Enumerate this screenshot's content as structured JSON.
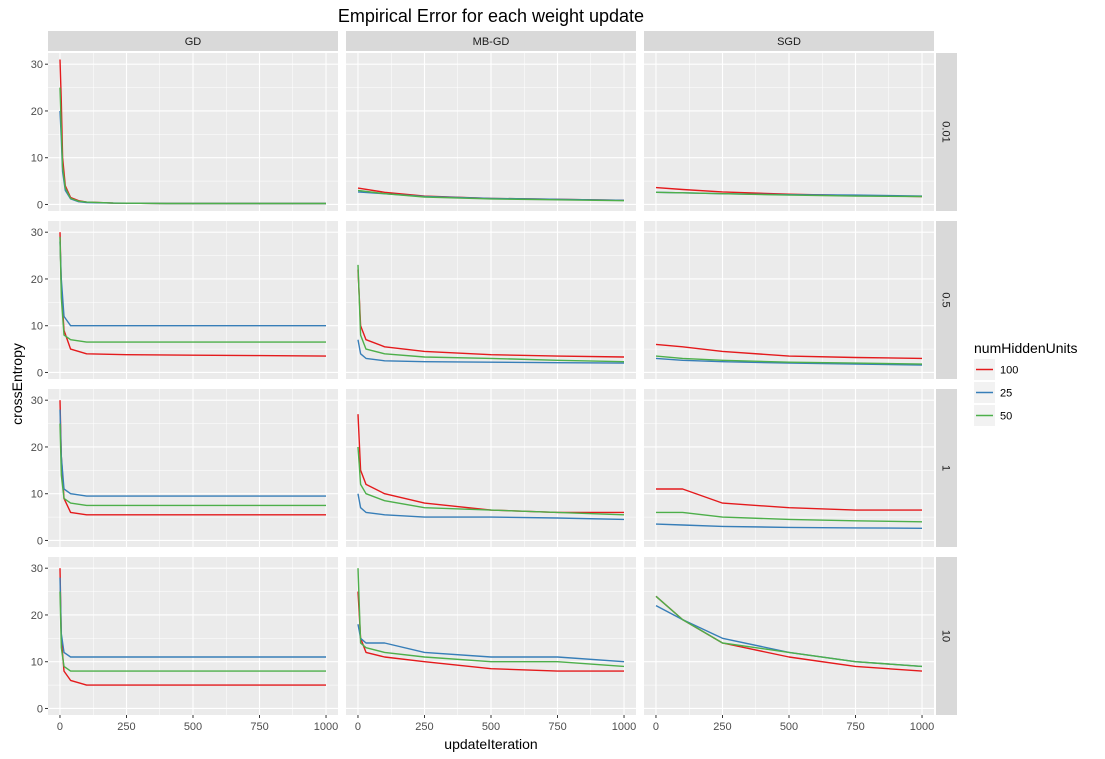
{
  "chart_data": {
    "type": "line",
    "title": "Empirical Error for each weight update",
    "xlabel": "updateIteration",
    "ylabel": "crossEntropy",
    "xlim": [
      0,
      1000
    ],
    "ylim": [
      0,
      31
    ],
    "x_ticks": [
      0,
      250,
      500,
      750,
      1000
    ],
    "y_ticks": [
      0,
      10,
      20,
      30
    ],
    "columns": [
      "GD",
      "MB-GD",
      "SGD"
    ],
    "rows": [
      "0.01",
      "0.5",
      "1",
      "10"
    ],
    "legend": {
      "title": "numHiddenUnits",
      "position": "right",
      "entries": [
        {
          "label": "100",
          "color": "#e41a1c"
        },
        {
          "label": "25",
          "color": "#377eb8"
        },
        {
          "label": "50",
          "color": "#4daf4a"
        }
      ]
    },
    "grid": true,
    "panels": [
      {
        "col": "GD",
        "row": "0.01",
        "series": [
          {
            "name": "100",
            "x": [
              0,
              5,
              10,
              20,
              40,
              70,
              100,
              200,
              400,
              700,
              1000
            ],
            "y": [
              31,
              22,
              10,
              4,
              1.5,
              0.8,
              0.5,
              0.3,
              0.2,
              0.2,
              0.2
            ]
          },
          {
            "name": "25",
            "x": [
              0,
              5,
              10,
              20,
              40,
              70,
              100,
              200,
              400,
              700,
              1000
            ],
            "y": [
              20,
              14,
              7,
              3,
              1.2,
              0.6,
              0.4,
              0.3,
              0.2,
              0.2,
              0.2
            ]
          },
          {
            "name": "50",
            "x": [
              0,
              5,
              10,
              20,
              40,
              70,
              100,
              200,
              400,
              700,
              1000
            ],
            "y": [
              25,
              16,
              8,
              3.5,
              1.3,
              0.7,
              0.5,
              0.3,
              0.2,
              0.2,
              0.2
            ]
          }
        ]
      },
      {
        "col": "MB-GD",
        "row": "0.01",
        "series": [
          {
            "name": "100",
            "x": [
              0,
              100,
              250,
              500,
              750,
              1000
            ],
            "y": [
              3.5,
              2.6,
              1.8,
              1.3,
              1.1,
              0.9
            ]
          },
          {
            "name": "25",
            "x": [
              0,
              100,
              250,
              500,
              750,
              1000
            ],
            "y": [
              2.7,
              2.3,
              1.7,
              1.3,
              1.1,
              0.9
            ]
          },
          {
            "name": "50",
            "x": [
              0,
              100,
              250,
              500,
              750,
              1000
            ],
            "y": [
              3.0,
              2.3,
              1.6,
              1.2,
              1.0,
              0.8
            ]
          }
        ]
      },
      {
        "col": "SGD",
        "row": "0.01",
        "series": [
          {
            "name": "100",
            "x": [
              0,
              100,
              250,
              500,
              750,
              1000
            ],
            "y": [
              3.6,
              3.2,
              2.7,
              2.2,
              1.9,
              1.7
            ]
          },
          {
            "name": "25",
            "x": [
              0,
              100,
              250,
              500,
              750,
              1000
            ],
            "y": [
              2.6,
              2.5,
              2.3,
              2.1,
              2.0,
              1.8
            ]
          },
          {
            "name": "50",
            "x": [
              0,
              100,
              250,
              500,
              750,
              1000
            ],
            "y": [
              2.6,
              2.5,
              2.3,
              2.0,
              1.8,
              1.7
            ]
          }
        ]
      },
      {
        "col": "GD",
        "row": "0.5",
        "series": [
          {
            "name": "100",
            "x": [
              0,
              5,
              15,
              40,
              100,
              250,
              500,
              750,
              1000
            ],
            "y": [
              30,
              18,
              9,
              5,
              4,
              3.8,
              3.7,
              3.6,
              3.5
            ]
          },
          {
            "name": "25",
            "x": [
              0,
              5,
              15,
              40,
              100,
              250,
              500,
              750,
              1000
            ],
            "y": [
              28,
              20,
              12,
              10,
              10,
              10,
              10,
              10,
              10
            ]
          },
          {
            "name": "50",
            "x": [
              0,
              5,
              15,
              40,
              100,
              250,
              500,
              750,
              1000
            ],
            "y": [
              29,
              16,
              8,
              7,
              6.5,
              6.5,
              6.5,
              6.5,
              6.5
            ]
          }
        ]
      },
      {
        "col": "MB-GD",
        "row": "0.5",
        "series": [
          {
            "name": "100",
            "x": [
              0,
              10,
              30,
              100,
              250,
              500,
              750,
              1000
            ],
            "y": [
              22,
              10,
              7,
              5.5,
              4.5,
              3.8,
              3.5,
              3.3
            ]
          },
          {
            "name": "25",
            "x": [
              0,
              10,
              30,
              100,
              250,
              500,
              750,
              1000
            ],
            "y": [
              7,
              4,
              3,
              2.5,
              2.3,
              2.2,
              2.1,
              2.0
            ]
          },
          {
            "name": "50",
            "x": [
              0,
              10,
              30,
              100,
              250,
              500,
              750,
              1000
            ],
            "y": [
              23,
              8,
              5,
              4,
              3.3,
              3.0,
              2.6,
              2.3
            ]
          }
        ]
      },
      {
        "col": "SGD",
        "row": "0.5",
        "series": [
          {
            "name": "100",
            "x": [
              0,
              100,
              250,
              500,
              750,
              1000
            ],
            "y": [
              6,
              5.5,
              4.5,
              3.5,
              3.2,
              3.0
            ]
          },
          {
            "name": "25",
            "x": [
              0,
              100,
              250,
              500,
              750,
              1000
            ],
            "y": [
              3,
              2.6,
              2.3,
              2.0,
              1.8,
              1.6
            ]
          },
          {
            "name": "50",
            "x": [
              0,
              100,
              250,
              500,
              750,
              1000
            ],
            "y": [
              3.5,
              3.0,
              2.6,
              2.2,
              2.0,
              1.8
            ]
          }
        ]
      },
      {
        "col": "GD",
        "row": "1",
        "series": [
          {
            "name": "100",
            "x": [
              0,
              5,
              15,
              40,
              100,
              250,
              500,
              750,
              1000
            ],
            "y": [
              30,
              18,
              9,
              6,
              5.5,
              5.5,
              5.5,
              5.5,
              5.5
            ]
          },
          {
            "name": "25",
            "x": [
              0,
              5,
              15,
              40,
              100,
              250,
              500,
              750,
              1000
            ],
            "y": [
              28,
              18,
              11,
              10,
              9.5,
              9.5,
              9.5,
              9.5,
              9.5
            ]
          },
          {
            "name": "50",
            "x": [
              0,
              5,
              15,
              40,
              100,
              250,
              500,
              750,
              1000
            ],
            "y": [
              25,
              14,
              9,
              8,
              7.5,
              7.5,
              7.5,
              7.5,
              7.5
            ]
          }
        ]
      },
      {
        "col": "MB-GD",
        "row": "1",
        "series": [
          {
            "name": "100",
            "x": [
              0,
              10,
              30,
              100,
              250,
              500,
              750,
              1000
            ],
            "y": [
              27,
              15,
              12,
              10,
              8,
              6.5,
              6,
              6
            ]
          },
          {
            "name": "25",
            "x": [
              0,
              10,
              30,
              100,
              250,
              500,
              750,
              1000
            ],
            "y": [
              10,
              7,
              6,
              5.5,
              5,
              5,
              4.8,
              4.5
            ]
          },
          {
            "name": "50",
            "x": [
              0,
              10,
              30,
              100,
              250,
              500,
              750,
              1000
            ],
            "y": [
              20,
              12,
              10,
              8.5,
              7,
              6.5,
              6,
              5.5
            ]
          }
        ]
      },
      {
        "col": "SGD",
        "row": "1",
        "series": [
          {
            "name": "100",
            "x": [
              0,
              100,
              250,
              500,
              750,
              1000
            ],
            "y": [
              11,
              11,
              8,
              7,
              6.5,
              6.5
            ]
          },
          {
            "name": "25",
            "x": [
              0,
              100,
              250,
              500,
              750,
              1000
            ],
            "y": [
              3.5,
              3.3,
              3.0,
              2.8,
              2.7,
              2.6
            ]
          },
          {
            "name": "50",
            "x": [
              0,
              100,
              250,
              500,
              750,
              1000
            ],
            "y": [
              6,
              6,
              5,
              4.5,
              4.2,
              4.0
            ]
          }
        ]
      },
      {
        "col": "GD",
        "row": "10",
        "series": [
          {
            "name": "100",
            "x": [
              0,
              5,
              15,
              40,
              100,
              250,
              500,
              750,
              1000
            ],
            "y": [
              30,
              15,
              8,
              6,
              5,
              5,
              5,
              5,
              5
            ]
          },
          {
            "name": "25",
            "x": [
              0,
              5,
              15,
              40,
              100,
              250,
              500,
              750,
              1000
            ],
            "y": [
              28,
              16,
              12,
              11,
              11,
              11,
              11,
              11,
              11
            ]
          },
          {
            "name": "50",
            "x": [
              0,
              5,
              15,
              40,
              100,
              250,
              500,
              750,
              1000
            ],
            "y": [
              25,
              13,
              9,
              8,
              8,
              8,
              8,
              8,
              8
            ]
          }
        ]
      },
      {
        "col": "MB-GD",
        "row": "10",
        "series": [
          {
            "name": "100",
            "x": [
              0,
              10,
              30,
              100,
              250,
              500,
              750,
              1000
            ],
            "y": [
              25,
              15,
              12,
              11,
              10,
              8.5,
              8,
              8
            ]
          },
          {
            "name": "25",
            "x": [
              0,
              10,
              30,
              100,
              250,
              500,
              750,
              1000
            ],
            "y": [
              18,
              15,
              14,
              14,
              12,
              11,
              11,
              10
            ]
          },
          {
            "name": "50",
            "x": [
              0,
              10,
              30,
              100,
              250,
              500,
              750,
              1000
            ],
            "y": [
              30,
              14,
              13,
              12,
              11,
              10,
              10,
              9
            ]
          }
        ]
      },
      {
        "col": "SGD",
        "row": "10",
        "series": [
          {
            "name": "100",
            "x": [
              0,
              100,
              250,
              500,
              750,
              1000
            ],
            "y": [
              24,
              19,
              14,
              11,
              9,
              8
            ]
          },
          {
            "name": "25",
            "x": [
              0,
              100,
              250,
              500,
              750,
              1000
            ],
            "y": [
              22,
              19,
              15,
              12,
              10,
              9
            ]
          },
          {
            "name": "50",
            "x": [
              0,
              100,
              250,
              500,
              750,
              1000
            ],
            "y": [
              24,
              19,
              14,
              12,
              10,
              9
            ]
          }
        ]
      }
    ]
  }
}
